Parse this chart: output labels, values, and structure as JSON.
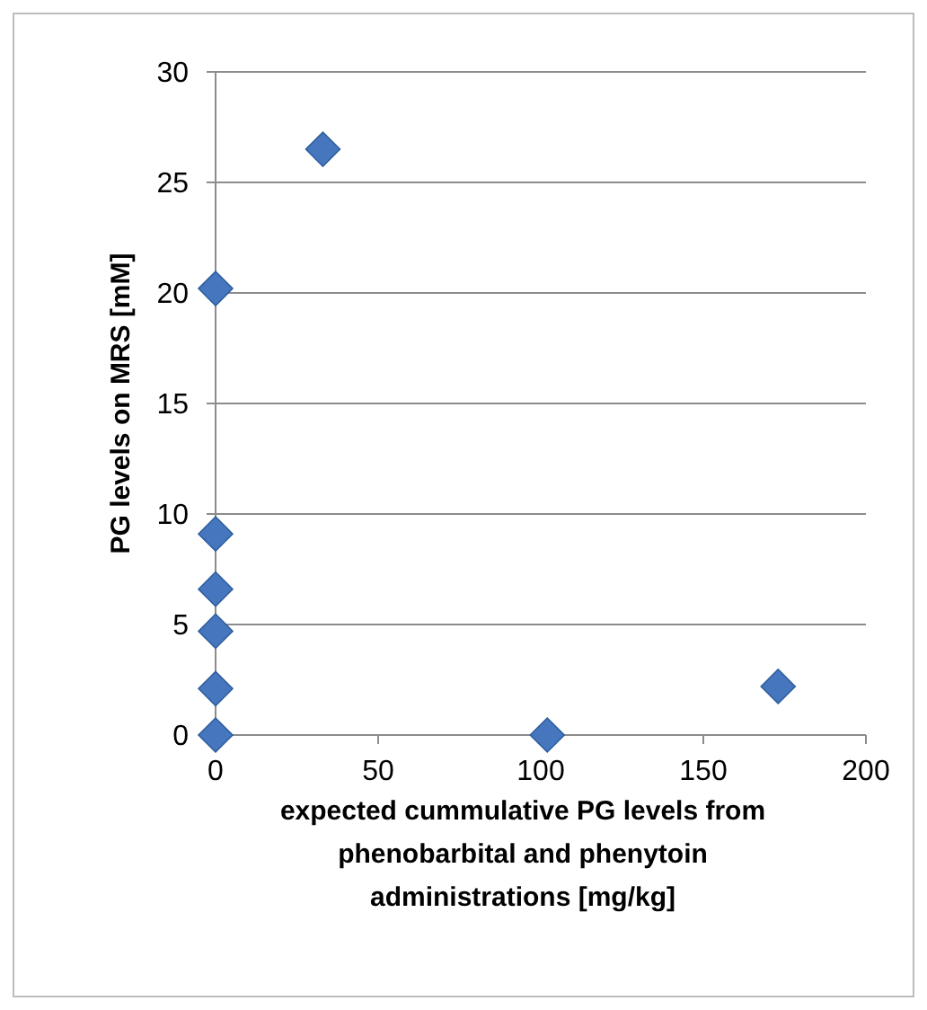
{
  "chart_data": {
    "type": "scatter",
    "xlabel": "expected cummulative PG levels from phenobarbital and phenytoin administrations [mg/kg]",
    "ylabel": "PG levels on MRS [mM]",
    "x": [
      0,
      33,
      0,
      0,
      0,
      0,
      0,
      102,
      173
    ],
    "series": [
      {
        "color": "#4677be",
        "values": [
          20.2,
          26.5,
          9.1,
          6.6,
          4.7,
          2.1,
          0,
          0,
          2.2
        ]
      }
    ],
    "xlim": [
      0,
      200
    ],
    "xticks": [
      0,
      50,
      100,
      150,
      200
    ],
    "ylim": [
      0,
      30
    ],
    "yticks": [
      0,
      5,
      10,
      15,
      20,
      25,
      30
    ],
    "grid": "y",
    "marker": "diamond"
  }
}
